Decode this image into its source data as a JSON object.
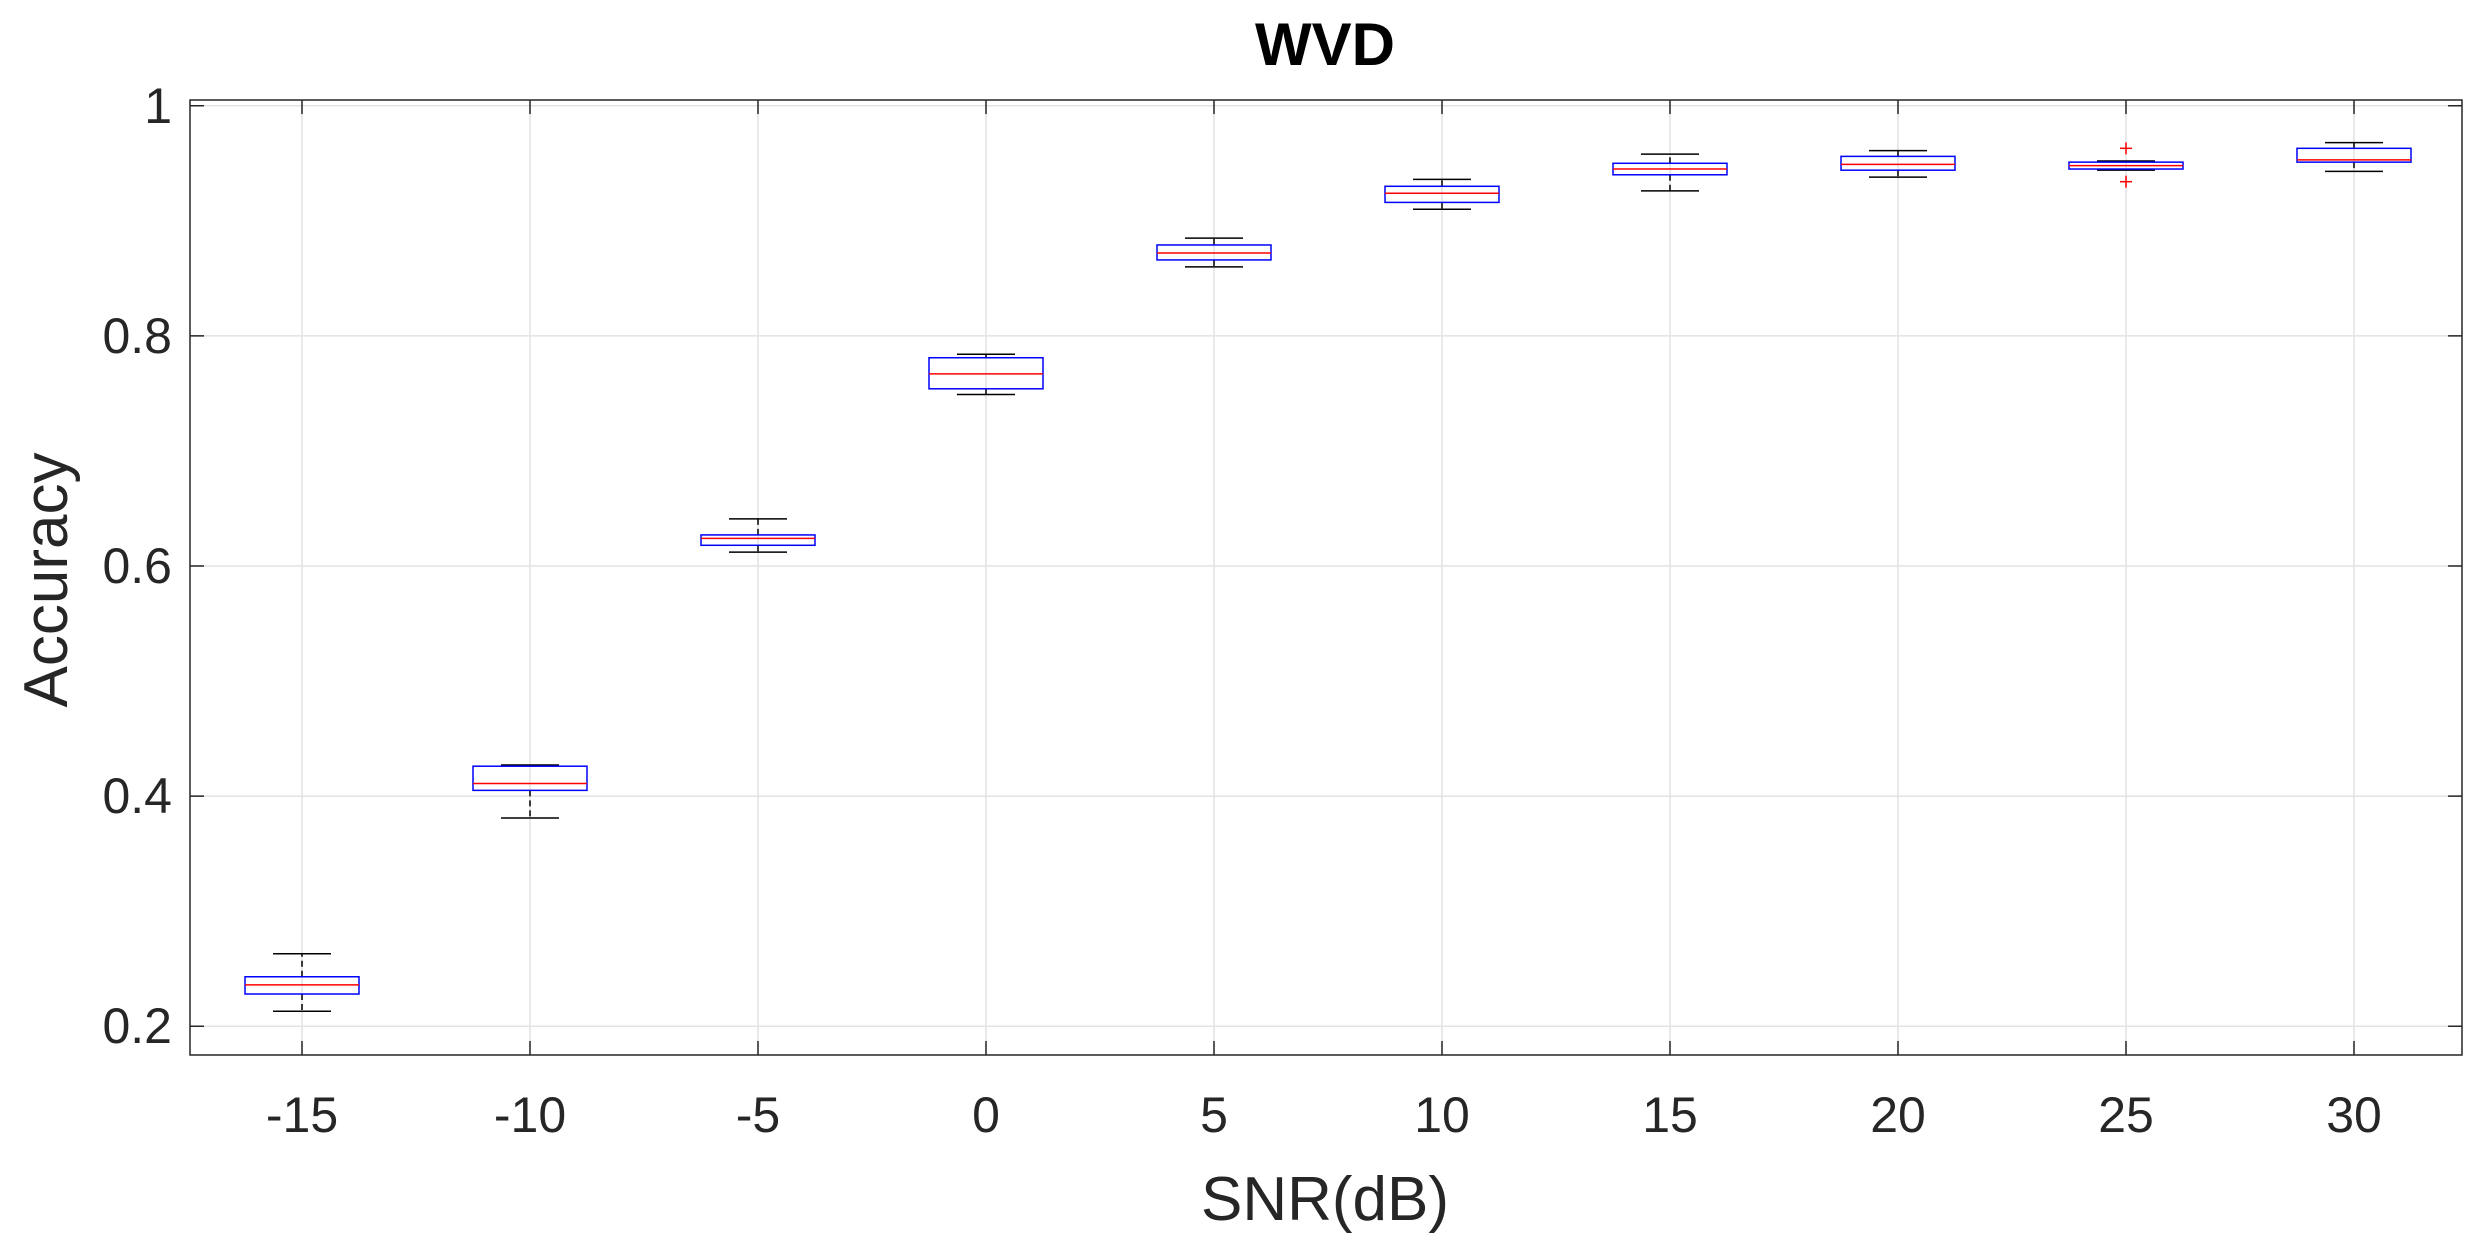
{
  "chart_data": {
    "type": "box",
    "title": "WVD",
    "xlabel": "SNR(dB)",
    "ylabel": "Accuracy",
    "ylim": [
      0.175,
      1.005
    ],
    "grid": true,
    "y_ticks": [
      "0.2",
      "0.4",
      "0.6",
      "0.8",
      "1"
    ],
    "y_tick_values": [
      0.2,
      0.4,
      0.6,
      0.8,
      1.0
    ],
    "categories": [
      "-15",
      "-10",
      "-5",
      "0",
      "5",
      "10",
      "15",
      "20",
      "25",
      "30"
    ],
    "boxes": [
      {
        "whisker_low": 0.213,
        "q1": 0.228,
        "median": 0.236,
        "q3": 0.243,
        "whisker_high": 0.263,
        "outliers": []
      },
      {
        "whisker_low": 0.381,
        "q1": 0.405,
        "median": 0.411,
        "q3": 0.426,
        "whisker_high": 0.427,
        "outliers": []
      },
      {
        "whisker_low": 0.612,
        "q1": 0.618,
        "median": 0.624,
        "q3": 0.627,
        "whisker_high": 0.641,
        "outliers": []
      },
      {
        "whisker_low": 0.749,
        "q1": 0.754,
        "median": 0.767,
        "q3": 0.781,
        "whisker_high": 0.784,
        "outliers": []
      },
      {
        "whisker_low": 0.86,
        "q1": 0.866,
        "median": 0.872,
        "q3": 0.879,
        "whisker_high": 0.885,
        "outliers": []
      },
      {
        "whisker_low": 0.91,
        "q1": 0.916,
        "median": 0.924,
        "q3": 0.93,
        "whisker_high": 0.936,
        "outliers": []
      },
      {
        "whisker_low": 0.926,
        "q1": 0.94,
        "median": 0.945,
        "q3": 0.95,
        "whisker_high": 0.958,
        "outliers": []
      },
      {
        "whisker_low": 0.938,
        "q1": 0.944,
        "median": 0.949,
        "q3": 0.956,
        "whisker_high": 0.961,
        "outliers": []
      },
      {
        "whisker_low": 0.944,
        "q1": 0.945,
        "median": 0.948,
        "q3": 0.951,
        "whisker_high": 0.952,
        "outliers": [
          0.963,
          0.934
        ]
      },
      {
        "whisker_low": 0.943,
        "q1": 0.951,
        "median": 0.953,
        "q3": 0.963,
        "whisker_high": 0.968,
        "outliers": []
      }
    ],
    "colors": {
      "box": "#0000ff",
      "median": "#ff0000",
      "whisker": "#000000",
      "outlier": "#ff0000",
      "grid": "#e3e3e3",
      "axis": "#262626"
    }
  }
}
